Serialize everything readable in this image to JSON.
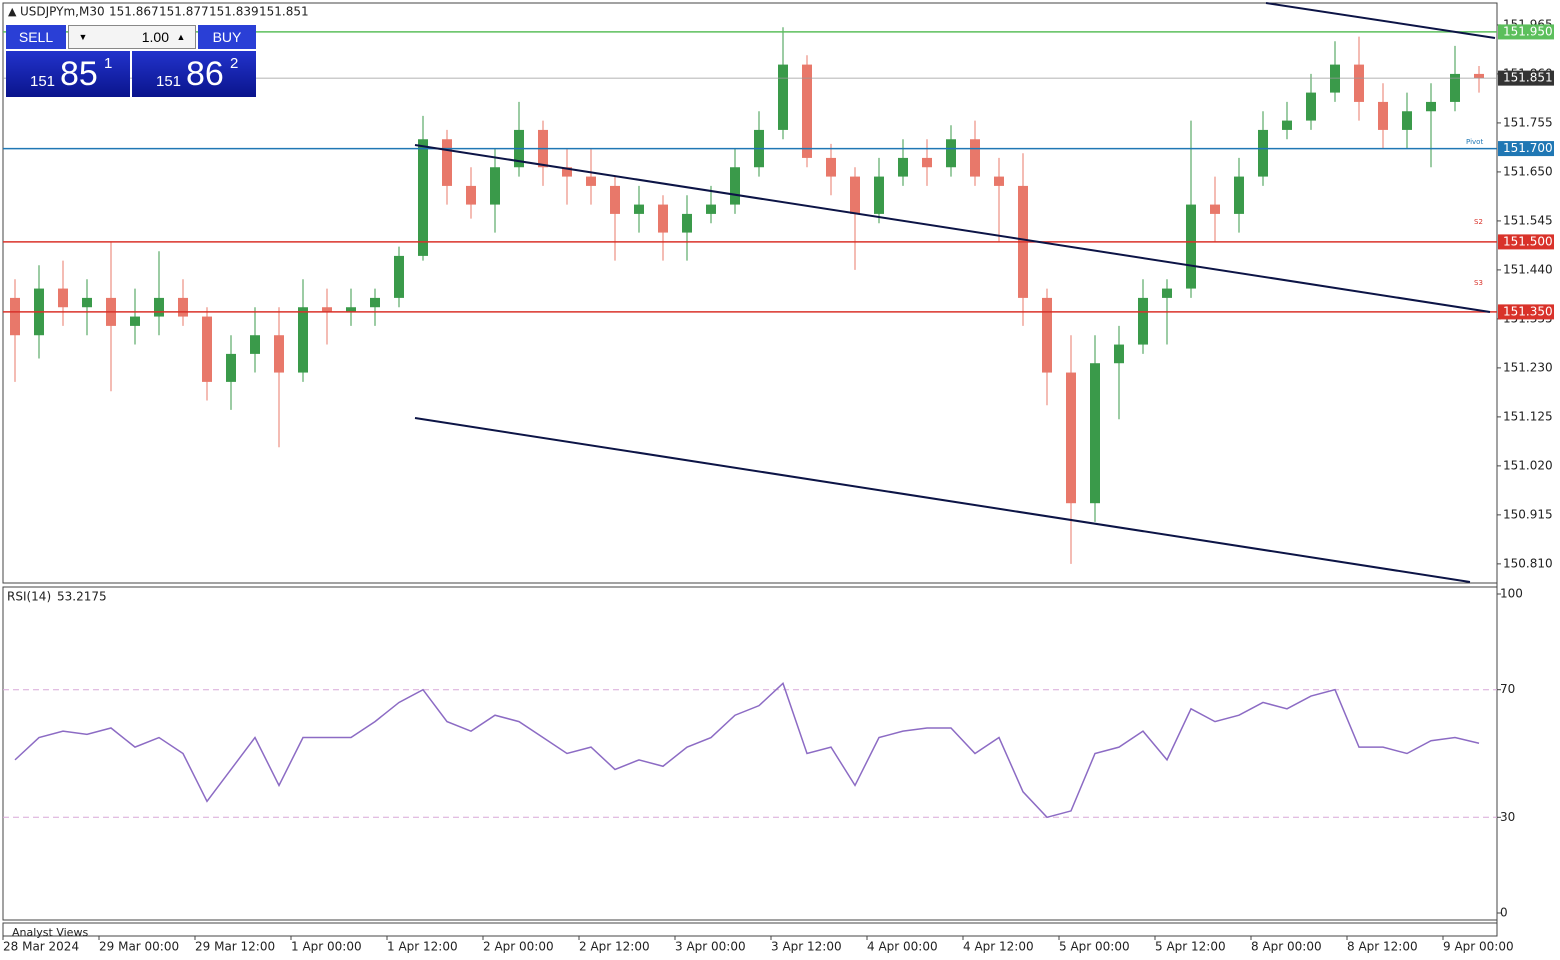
{
  "header": {
    "symbol": "USDJPYm,M30",
    "ohlc": [
      151.867,
      151.877,
      151.839,
      151.851
    ]
  },
  "trade_panel": {
    "sell": "SELL",
    "buy": "BUY",
    "lot": "1.00",
    "sell_price": [
      "151",
      "85",
      "1"
    ],
    "buy_price": [
      "151",
      "86",
      "2"
    ]
  },
  "footer": "Analyst Views",
  "pivot_labels": [
    "Pivot",
    "S2",
    "S3"
  ],
  "chart_data": [
    {
      "type": "candlestick",
      "categories": [
        "28 Mar 2024",
        null,
        null,
        null,
        "29 Mar 00:00",
        null,
        null,
        null,
        "29 Mar 12:00",
        null,
        null,
        null,
        "1 Apr 00:00",
        null,
        null,
        null,
        "1 Apr 12:00",
        null,
        null,
        null,
        "2 Apr 00:00",
        null,
        null,
        null,
        "2 Apr 12:00",
        null,
        null,
        null,
        "3 Apr 00:00",
        null,
        null,
        null,
        "3 Apr 12:00",
        null,
        null,
        null,
        "4 Apr 00:00",
        null,
        null,
        null,
        "4 Apr 12:00",
        null,
        null,
        null,
        "5 Apr 00:00",
        null,
        null,
        null,
        "5 Apr 12:00",
        null,
        null,
        null,
        "8 Apr 00:00",
        null,
        null,
        null,
        "8 Apr 12:00",
        null,
        null,
        null,
        "9 Apr 00:00",
        null
      ],
      "open": [
        151.38,
        151.3,
        151.4,
        151.36,
        151.38,
        151.32,
        151.34,
        151.38,
        151.34,
        151.2,
        151.26,
        151.3,
        151.22,
        151.36,
        151.35,
        151.36,
        151.38,
        151.47,
        151.72,
        151.62,
        151.58,
        151.66,
        151.74,
        151.66,
        151.64,
        151.62,
        151.56,
        151.58,
        151.52,
        151.56,
        151.58,
        151.66,
        151.74,
        151.88,
        151.68,
        151.64,
        151.56,
        151.64,
        151.68,
        151.66,
        151.72,
        151.64,
        151.62,
        151.38,
        151.22,
        150.94,
        151.24,
        151.28,
        151.38,
        151.4,
        151.58,
        151.56,
        151.64,
        151.74,
        151.76,
        151.82,
        151.88,
        151.8,
        151.74,
        151.78,
        151.8,
        151.86
      ],
      "high": [
        151.42,
        151.45,
        151.46,
        151.42,
        151.5,
        151.4,
        151.48,
        151.42,
        151.36,
        151.3,
        151.36,
        151.36,
        151.42,
        151.4,
        151.4,
        151.4,
        151.49,
        151.77,
        151.74,
        151.66,
        151.7,
        151.8,
        151.76,
        151.7,
        151.7,
        151.64,
        151.62,
        151.6,
        151.6,
        151.62,
        151.7,
        151.78,
        151.96,
        151.9,
        151.71,
        151.66,
        151.68,
        151.72,
        151.72,
        151.75,
        151.76,
        151.68,
        151.69,
        151.4,
        151.3,
        151.3,
        151.32,
        151.42,
        151.42,
        151.76,
        151.64,
        151.68,
        151.78,
        151.8,
        151.86,
        151.93,
        151.94,
        151.84,
        151.82,
        151.84,
        151.92,
        151.877
      ],
      "low": [
        151.2,
        151.25,
        151.32,
        151.3,
        151.18,
        151.28,
        151.3,
        151.32,
        151.16,
        151.14,
        151.22,
        151.06,
        151.2,
        151.28,
        151.32,
        151.32,
        151.36,
        151.46,
        151.58,
        151.55,
        151.52,
        151.64,
        151.62,
        151.58,
        151.58,
        151.46,
        151.52,
        151.46,
        151.46,
        151.54,
        151.56,
        151.64,
        151.72,
        151.66,
        151.6,
        151.44,
        151.54,
        151.62,
        151.62,
        151.64,
        151.62,
        151.5,
        151.32,
        151.15,
        150.81,
        150.9,
        151.12,
        151.26,
        151.28,
        151.38,
        151.5,
        151.52,
        151.62,
        151.72,
        151.74,
        151.8,
        151.76,
        151.7,
        151.7,
        151.66,
        151.78,
        151.82
      ],
      "close": [
        151.3,
        151.4,
        151.36,
        151.38,
        151.32,
        151.34,
        151.38,
        151.34,
        151.2,
        151.26,
        151.3,
        151.22,
        151.36,
        151.35,
        151.36,
        151.38,
        151.47,
        151.72,
        151.62,
        151.58,
        151.66,
        151.74,
        151.66,
        151.64,
        151.62,
        151.56,
        151.58,
        151.52,
        151.56,
        151.58,
        151.66,
        151.74,
        151.88,
        151.68,
        151.64,
        151.56,
        151.64,
        151.68,
        151.66,
        151.72,
        151.64,
        151.62,
        151.38,
        151.22,
        150.94,
        151.24,
        151.28,
        151.38,
        151.4,
        151.58,
        151.56,
        151.64,
        151.74,
        151.76,
        151.82,
        151.88,
        151.8,
        151.74,
        151.78,
        151.8,
        151.86,
        151.851
      ],
      "up_color": "#3a9a4a",
      "down_color": "#e8786a",
      "ylim": [
        150.769,
        152.012
      ],
      "yticks": [
        151.965,
        {
          "value": 151.86,
          "label": "151.860"
        },
        151.755,
        {
          "value": 151.65,
          "label": "151.650"
        },
        151.545,
        {
          "value": 151.44,
          "label": "151.440"
        },
        151.335,
        {
          "value": 151.23,
          "label": "151.230"
        },
        151.125,
        {
          "value": 151.02,
          "label": "151.020"
        },
        150.915,
        {
          "value": 150.81,
          "label": "150.810"
        }
      ],
      "levels": [
        {
          "value": 151.95,
          "label": "151.950",
          "color": "#5cbf5c"
        },
        {
          "value": 151.851,
          "label": "151.851",
          "color": "#999999"
        },
        {
          "value": 151.7,
          "label": "151.700",
          "color": "#1f77b4"
        },
        {
          "value": 151.5,
          "label": "151.500",
          "color": "#d9322a"
        },
        {
          "value": 151.35,
          "label": "151.350",
          "color": "#d9322a"
        }
      ]
    },
    {
      "type": "line",
      "name": "RSI(14)",
      "color": "#8c6bc4",
      "values": [
        48,
        55,
        57,
        56,
        58,
        52,
        55,
        50,
        35,
        45,
        55,
        40,
        55,
        55,
        55,
        60,
        66,
        70,
        60,
        57,
        62,
        60,
        55,
        50,
        52,
        45,
        48,
        46,
        52,
        55,
        62,
        65,
        72,
        50,
        52,
        40,
        55,
        57,
        58,
        58,
        50,
        55,
        38,
        30,
        32,
        50,
        52,
        57,
        48,
        64,
        60,
        62,
        66,
        64,
        68,
        70,
        52,
        52,
        50,
        54,
        55,
        53.2175
      ],
      "ylim": [
        0,
        100
      ],
      "yticks": [
        0,
        30,
        70,
        100
      ],
      "levels": [
        30,
        70
      ]
    }
  ]
}
